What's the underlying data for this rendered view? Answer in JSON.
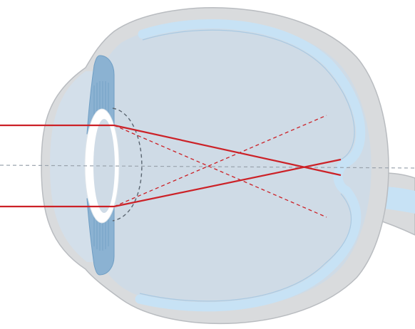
{
  "diagram": {
    "colors": {
      "background": "#ffffff",
      "outer_tissue": "#d9dbdd",
      "outer_tissue_stroke": "#b9bcc0",
      "eye_interior": "#cfdbe6",
      "retina_band": "#c7e2f5",
      "iris": "#8bb2d2",
      "iris_dark": "#6f9ec4",
      "lens_ring": "#ffffff",
      "light_ray": "#cc2127",
      "optical_axis": "#9aa3ad",
      "accommodated_lens_outline": "#5a6570"
    }
  }
}
